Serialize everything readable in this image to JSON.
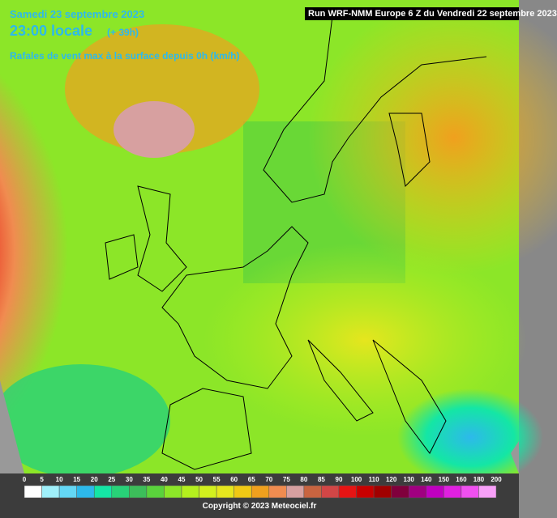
{
  "header": {
    "date": "Samedi 23 septembre 2023",
    "time": "23:00 locale",
    "lead": "(+ 39h)",
    "parameter": "Rafales de vent max à la surface depuis 0h (km/h)",
    "run": "Run WRF-NMM Europe 6 Z du Vendredi 22 septembre 2023"
  },
  "legend": [
    {
      "label": "0",
      "color": "#ffffff"
    },
    {
      "label": "5",
      "color": "#a0f0fa"
    },
    {
      "label": "10",
      "color": "#64d7f5"
    },
    {
      "label": "15",
      "color": "#2db9eb"
    },
    {
      "label": "20",
      "color": "#14e6a5"
    },
    {
      "label": "25",
      "color": "#28d278"
    },
    {
      "label": "30",
      "color": "#3cbe5a"
    },
    {
      "label": "35",
      "color": "#5ad23c"
    },
    {
      "label": "40",
      "color": "#8ce628"
    },
    {
      "label": "45",
      "color": "#b4f01e"
    },
    {
      "label": "50",
      "color": "#d2f01e"
    },
    {
      "label": "55",
      "color": "#e6e61e"
    },
    {
      "label": "60",
      "color": "#f0c814"
    },
    {
      "label": "65",
      "color": "#f0a01e"
    },
    {
      "label": "70",
      "color": "#f08c50"
    },
    {
      "label": "75",
      "color": "#d7a0a0"
    },
    {
      "label": "80",
      "color": "#c86440"
    },
    {
      "label": "85",
      "color": "#d24646"
    },
    {
      "label": "90",
      "color": "#e61414"
    },
    {
      "label": "100",
      "color": "#c80000"
    },
    {
      "label": "110",
      "color": "#a00000"
    },
    {
      "label": "120",
      "color": "#80003c"
    },
    {
      "label": "130",
      "color": "#a00080"
    },
    {
      "label": "140",
      "color": "#c000c0"
    },
    {
      "label": "150",
      "color": "#e020e0"
    },
    {
      "label": "160",
      "color": "#f050f0"
    },
    {
      "label": "180",
      "color": "#f8a0f8"
    },
    {
      "label": "200",
      "color": "#ffffff"
    }
  ],
  "footer": {
    "copyright": "Copyright © 2023 Meteociel.fr"
  }
}
